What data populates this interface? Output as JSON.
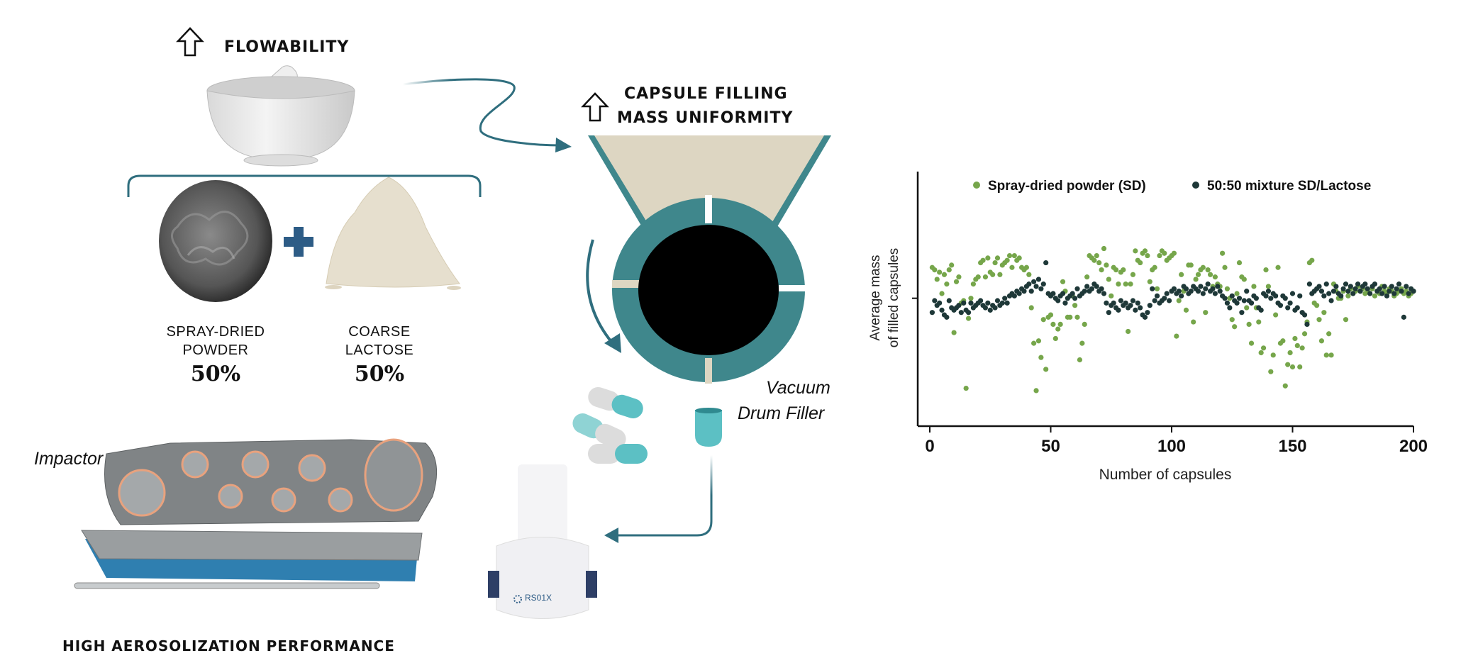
{
  "flowability": {
    "label": "FLOWABILITY",
    "icon": "up-arrow-outline-icon"
  },
  "capsule_filling": {
    "line1": "CAPSULE FILLING",
    "line2": "MASS UNIFORMITY",
    "icon": "up-arrow-outline-icon"
  },
  "ingredients": [
    {
      "line1": "SPRAY-DRIED",
      "line2": "POWDER",
      "percent": "50%"
    },
    {
      "line1": "COARSE",
      "line2": "LACTOSE",
      "percent": "50%"
    }
  ],
  "filler": {
    "line1": "Vacuum",
    "line2": "Drum Filler"
  },
  "impactor": {
    "label": "Impactor"
  },
  "performance": {
    "label": "HIGH AEROSOLIZATION PERFORMANCE"
  },
  "inhaler": {
    "brand": "RS01X"
  },
  "colors": {
    "teal": "#3f878c",
    "arrow": "#2f6e7e",
    "funnel": "#ddd6c2",
    "sd_green": "#76a64b",
    "mixture_dark": "#1e3838",
    "plus_blue": "#2d5c86"
  },
  "chart_data": {
    "type": "scatter",
    "xlabel": "Number of capsules",
    "ylabel_line1": "Average mass",
    "ylabel_line2": "of filled capsules",
    "xlim": [
      0,
      200
    ],
    "xticks": [
      0,
      50,
      100,
      150,
      200
    ],
    "ylim": [
      -5.4,
      5.35
    ],
    "yticks": [
      0
    ],
    "grid": false,
    "legend_placement": "top",
    "series": [
      {
        "name": "Spray-dried powder (SD)",
        "color": "#76a64b",
        "values": [
          1.3,
          1.2,
          0.8,
          1.1,
          0.2,
          1.0,
          0.6,
          1.2,
          1.4,
          -1.45,
          0.7,
          0.9,
          -0.2,
          -0.1,
          -3.8,
          -0.85,
          0.0,
          0.6,
          0.8,
          0.9,
          1.5,
          1.6,
          0.9,
          1.7,
          1.1,
          1.0,
          1.5,
          1.7,
          1.0,
          1.4,
          1.5,
          1.6,
          1.8,
          1.3,
          1.8,
          1.6,
          1.7,
          1.3,
          1.2,
          1.3,
          1.0,
          -0.4,
          -1.9,
          -3.9,
          -1.8,
          -2.5,
          -0.9,
          -3.0,
          -0.8,
          -0.7,
          -1.1,
          -1.7,
          -1.3,
          -1.1,
          0.7,
          0.3,
          -0.8,
          -0.8,
          0.1,
          -0.3,
          -0.8,
          -2.6,
          -1.9,
          -1.1,
          0.9,
          1.8,
          1.7,
          1.6,
          1.8,
          1.5,
          1.2,
          2.1,
          1.4,
          0.8,
          0.1,
          1.3,
          1.2,
          0.6,
          1.1,
          1.2,
          0.6,
          -1.4,
          0.6,
          1.0,
          2.0,
          1.6,
          1.5,
          1.9,
          2.0,
          1.8,
          0.7,
          1.2,
          1.3,
          0.4,
          1.8,
          2.0,
          1.9,
          1.6,
          1.7,
          1.8,
          1.9,
          -1.6,
          -0.1,
          1.0,
          0.3,
          -0.5,
          1.4,
          1.4,
          -1.0,
          0.8,
          1.0,
          1.2,
          1.3,
          -0.6,
          1.2,
          1.0,
          0.5,
          0.9,
          0.6,
          0.5,
          1.9,
          1.3,
          0.4,
          0.0,
          -0.9,
          -1.2,
          0.2,
          1.5,
          0.9,
          0.8,
          -0.4,
          -1.1,
          -1.9,
          0.5,
          -0.4,
          -1.0,
          -2.3,
          -2.1,
          1.2,
          0.5,
          -3.1,
          -2.4,
          -0.7,
          1.3,
          -1.9,
          -1.8,
          -3.7,
          -2.8,
          -2.3,
          -2.9,
          -1.7,
          -2.0,
          -2.9,
          -2.1,
          -1.5,
          -1.0,
          1.5,
          1.6,
          -0.2,
          -0.3,
          -0.9,
          -1.8,
          -0.6,
          -2.4,
          -1.5,
          -2.4,
          0.6,
          0.3,
          0.0,
          0.0,
          0.3,
          -0.9,
          0.1,
          0.4,
          0.2,
          0.3,
          0.5,
          0.3,
          0.4,
          0.2,
          0.3,
          0.2,
          0.4,
          0.1,
          0.3,
          0.2,
          0.5,
          0.3,
          0.2,
          0.4,
          0.3,
          0.1,
          0.2,
          0.3,
          0.4,
          0.2,
          0.3,
          0.1,
          0.2,
          0.3
        ]
      },
      {
        "name": "50:50 mixture SD/Lactose",
        "color": "#1e3838",
        "values": [
          -0.6,
          -0.1,
          -0.3,
          -0.2,
          -0.5,
          -0.7,
          -0.8,
          -0.1,
          -0.4,
          -0.5,
          -0.4,
          -0.3,
          -0.6,
          -0.2,
          -0.5,
          -0.6,
          -0.2,
          -0.4,
          -0.3,
          -0.2,
          -0.1,
          -0.3,
          -0.4,
          -0.2,
          -0.5,
          -0.3,
          -0.4,
          -0.1,
          -0.3,
          -0.2,
          0.0,
          -0.2,
          0.1,
          0.2,
          0.1,
          0.3,
          0.2,
          0.4,
          0.3,
          0.5,
          0.6,
          0.3,
          0.7,
          0.5,
          0.8,
          0.4,
          0.6,
          1.5,
          0.2,
          0.1,
          0.2,
          0.0,
          -0.1,
          0.1,
          0.2,
          -0.2,
          0.0,
          0.1,
          0.2,
          0.0,
          0.4,
          0.1,
          0.2,
          0.3,
          0.5,
          0.3,
          0.4,
          0.6,
          0.5,
          0.3,
          0.4,
          0.2,
          -0.2,
          -0.6,
          -0.3,
          -0.2,
          -0.4,
          -0.5,
          -0.1,
          -0.3,
          -0.2,
          -0.4,
          -0.3,
          -0.1,
          -0.5,
          -0.2,
          -0.4,
          -0.7,
          -0.8,
          -0.6,
          -0.3,
          0.4,
          -0.1,
          0.1,
          -0.2,
          -0.1,
          0.0,
          0.2,
          -0.1,
          0.3,
          0.4,
          0.2,
          0.3,
          0.1,
          0.5,
          0.4,
          0.2,
          0.3,
          0.5,
          0.4,
          0.3,
          0.5,
          0.2,
          0.4,
          0.6,
          0.3,
          0.4,
          0.2,
          0.5,
          0.3,
          0.1,
          0.0,
          -0.2,
          -0.4,
          0.1,
          -0.1,
          -0.2,
          0.0,
          -0.6,
          -0.1,
          0.3,
          -0.1,
          -0.2,
          0.1,
          0.0,
          -0.4,
          -0.5,
          0.2,
          0.1,
          0.3,
          0.0,
          0.2,
          0.1,
          -0.2,
          -0.3,
          0.1,
          0.0,
          -0.4,
          -0.2,
          0.2,
          -0.5,
          -0.4,
          0.1,
          -0.6,
          -0.7,
          -1.1,
          0.6,
          0.2,
          0.3,
          0.4,
          0.5,
          0.3,
          0.1,
          0.6,
          0.2,
          -0.1,
          0.3,
          0.5,
          0.2,
          0.1,
          0.4,
          0.6,
          0.3,
          0.5,
          0.2,
          0.4,
          0.6,
          0.3,
          0.5,
          0.6,
          0.4,
          0.2,
          0.5,
          0.6,
          0.3,
          0.4,
          0.2,
          0.5,
          0.1,
          0.3,
          0.5,
          0.2,
          0.4,
          0.6,
          0.3,
          -0.8,
          0.5,
          0.2,
          0.4,
          0.3
        ]
      }
    ]
  }
}
